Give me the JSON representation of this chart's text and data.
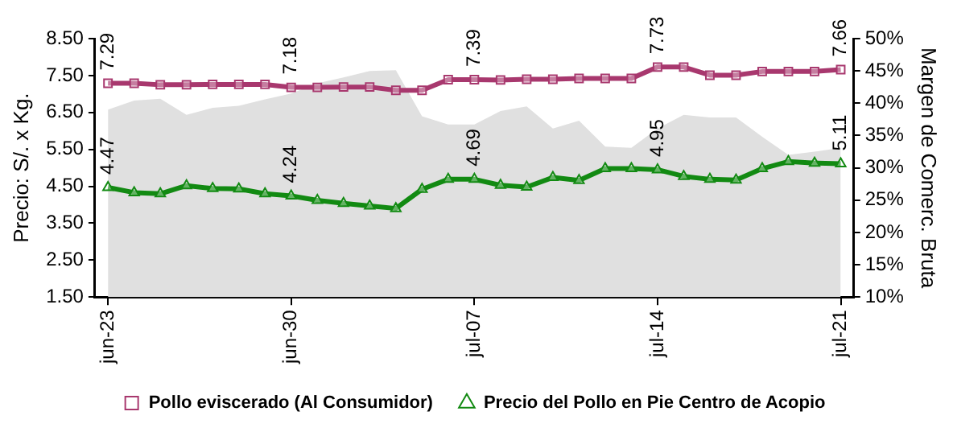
{
  "chart_data": {
    "type": "line",
    "xlabel": null,
    "ylabel": "Precio: S/. x Kg.",
    "y2label": "Margen de Comerc. Bruta",
    "categories": [
      "jun-23",
      null,
      null,
      null,
      null,
      null,
      null,
      "jun-30",
      null,
      null,
      null,
      null,
      null,
      null,
      "jul-07",
      null,
      null,
      null,
      null,
      null,
      null,
      "jul-14",
      null,
      null,
      null,
      null,
      null,
      null,
      "jul-21"
    ],
    "series": [
      {
        "type": "area",
        "axis": "y2",
        "color": "#e0e0e0",
        "values": [
          39.0,
          40.4,
          40.7,
          38.2,
          39.3,
          39.6,
          40.6,
          41.5,
          43.1,
          44.0,
          45.0,
          45.1,
          38.0,
          36.7,
          36.7,
          38.8,
          39.5,
          36.1,
          37.3,
          33.3,
          33.1,
          36.1,
          38.2,
          37.8,
          37.8,
          34.8,
          32.0,
          32.5,
          33.1
        ]
      },
      {
        "name": "Pollo eviscerado (Al Consumidor)",
        "color": "#a8386e",
        "marker": "square",
        "values": [
          7.29,
          7.29,
          7.25,
          7.25,
          7.26,
          7.26,
          7.26,
          7.18,
          7.18,
          7.19,
          7.19,
          7.1,
          7.1,
          7.39,
          7.39,
          7.38,
          7.4,
          7.4,
          7.42,
          7.42,
          7.42,
          7.73,
          7.73,
          7.51,
          7.51,
          7.61,
          7.61,
          7.61,
          7.66
        ],
        "value_labels": [
          "7.29",
          null,
          null,
          null,
          null,
          null,
          null,
          "7.18",
          null,
          null,
          null,
          null,
          null,
          null,
          "7.39",
          null,
          null,
          null,
          null,
          null,
          null,
          "7.73",
          null,
          null,
          null,
          null,
          null,
          null,
          "7.66"
        ]
      },
      {
        "name": "Precio del Pollo en Pie Centro de Acopio",
        "color": "#128a12",
        "marker": "triangle",
        "values": [
          4.47,
          4.33,
          4.3,
          4.52,
          4.44,
          4.43,
          4.3,
          4.24,
          4.12,
          4.04,
          3.97,
          3.9,
          4.42,
          4.69,
          4.69,
          4.53,
          4.48,
          4.74,
          4.66,
          4.98,
          4.98,
          4.95,
          4.77,
          4.69,
          4.67,
          4.98,
          5.17,
          5.13,
          5.11
        ],
        "value_labels": [
          "4.47",
          null,
          null,
          null,
          null,
          null,
          null,
          "4.24",
          null,
          null,
          null,
          null,
          null,
          null,
          "4.69",
          null,
          null,
          null,
          null,
          null,
          null,
          "4.95",
          null,
          null,
          null,
          null,
          null,
          null,
          "5.11"
        ]
      }
    ],
    "ylim": [
      1.5,
      8.5
    ],
    "yticks": [
      {
        "value": 1.5,
        "label": "1.50"
      },
      {
        "value": 2.5,
        "label": "2.50"
      },
      {
        "value": 3.5,
        "label": "3.50"
      },
      {
        "value": 4.5,
        "label": "4.50"
      },
      {
        "value": 5.5,
        "label": "5.50"
      },
      {
        "value": 6.5,
        "label": "6.50"
      },
      {
        "value": 7.5,
        "label": "7.50"
      },
      {
        "value": 8.5,
        "label": "8.50"
      }
    ],
    "y2lim": [
      10,
      50
    ],
    "y2ticks": [
      {
        "value": 10,
        "label": "10%"
      },
      {
        "value": 15,
        "label": "15%"
      },
      {
        "value": 20,
        "label": "20%"
      },
      {
        "value": 25,
        "label": "25%"
      },
      {
        "value": 30,
        "label": "30%"
      },
      {
        "value": 35,
        "label": "35%"
      },
      {
        "value": 40,
        "label": "40%"
      },
      {
        "value": 45,
        "label": "45%"
      },
      {
        "value": 50,
        "label": "50%"
      }
    ],
    "grid": false,
    "legend": "bottom",
    "line_style": "solid"
  }
}
